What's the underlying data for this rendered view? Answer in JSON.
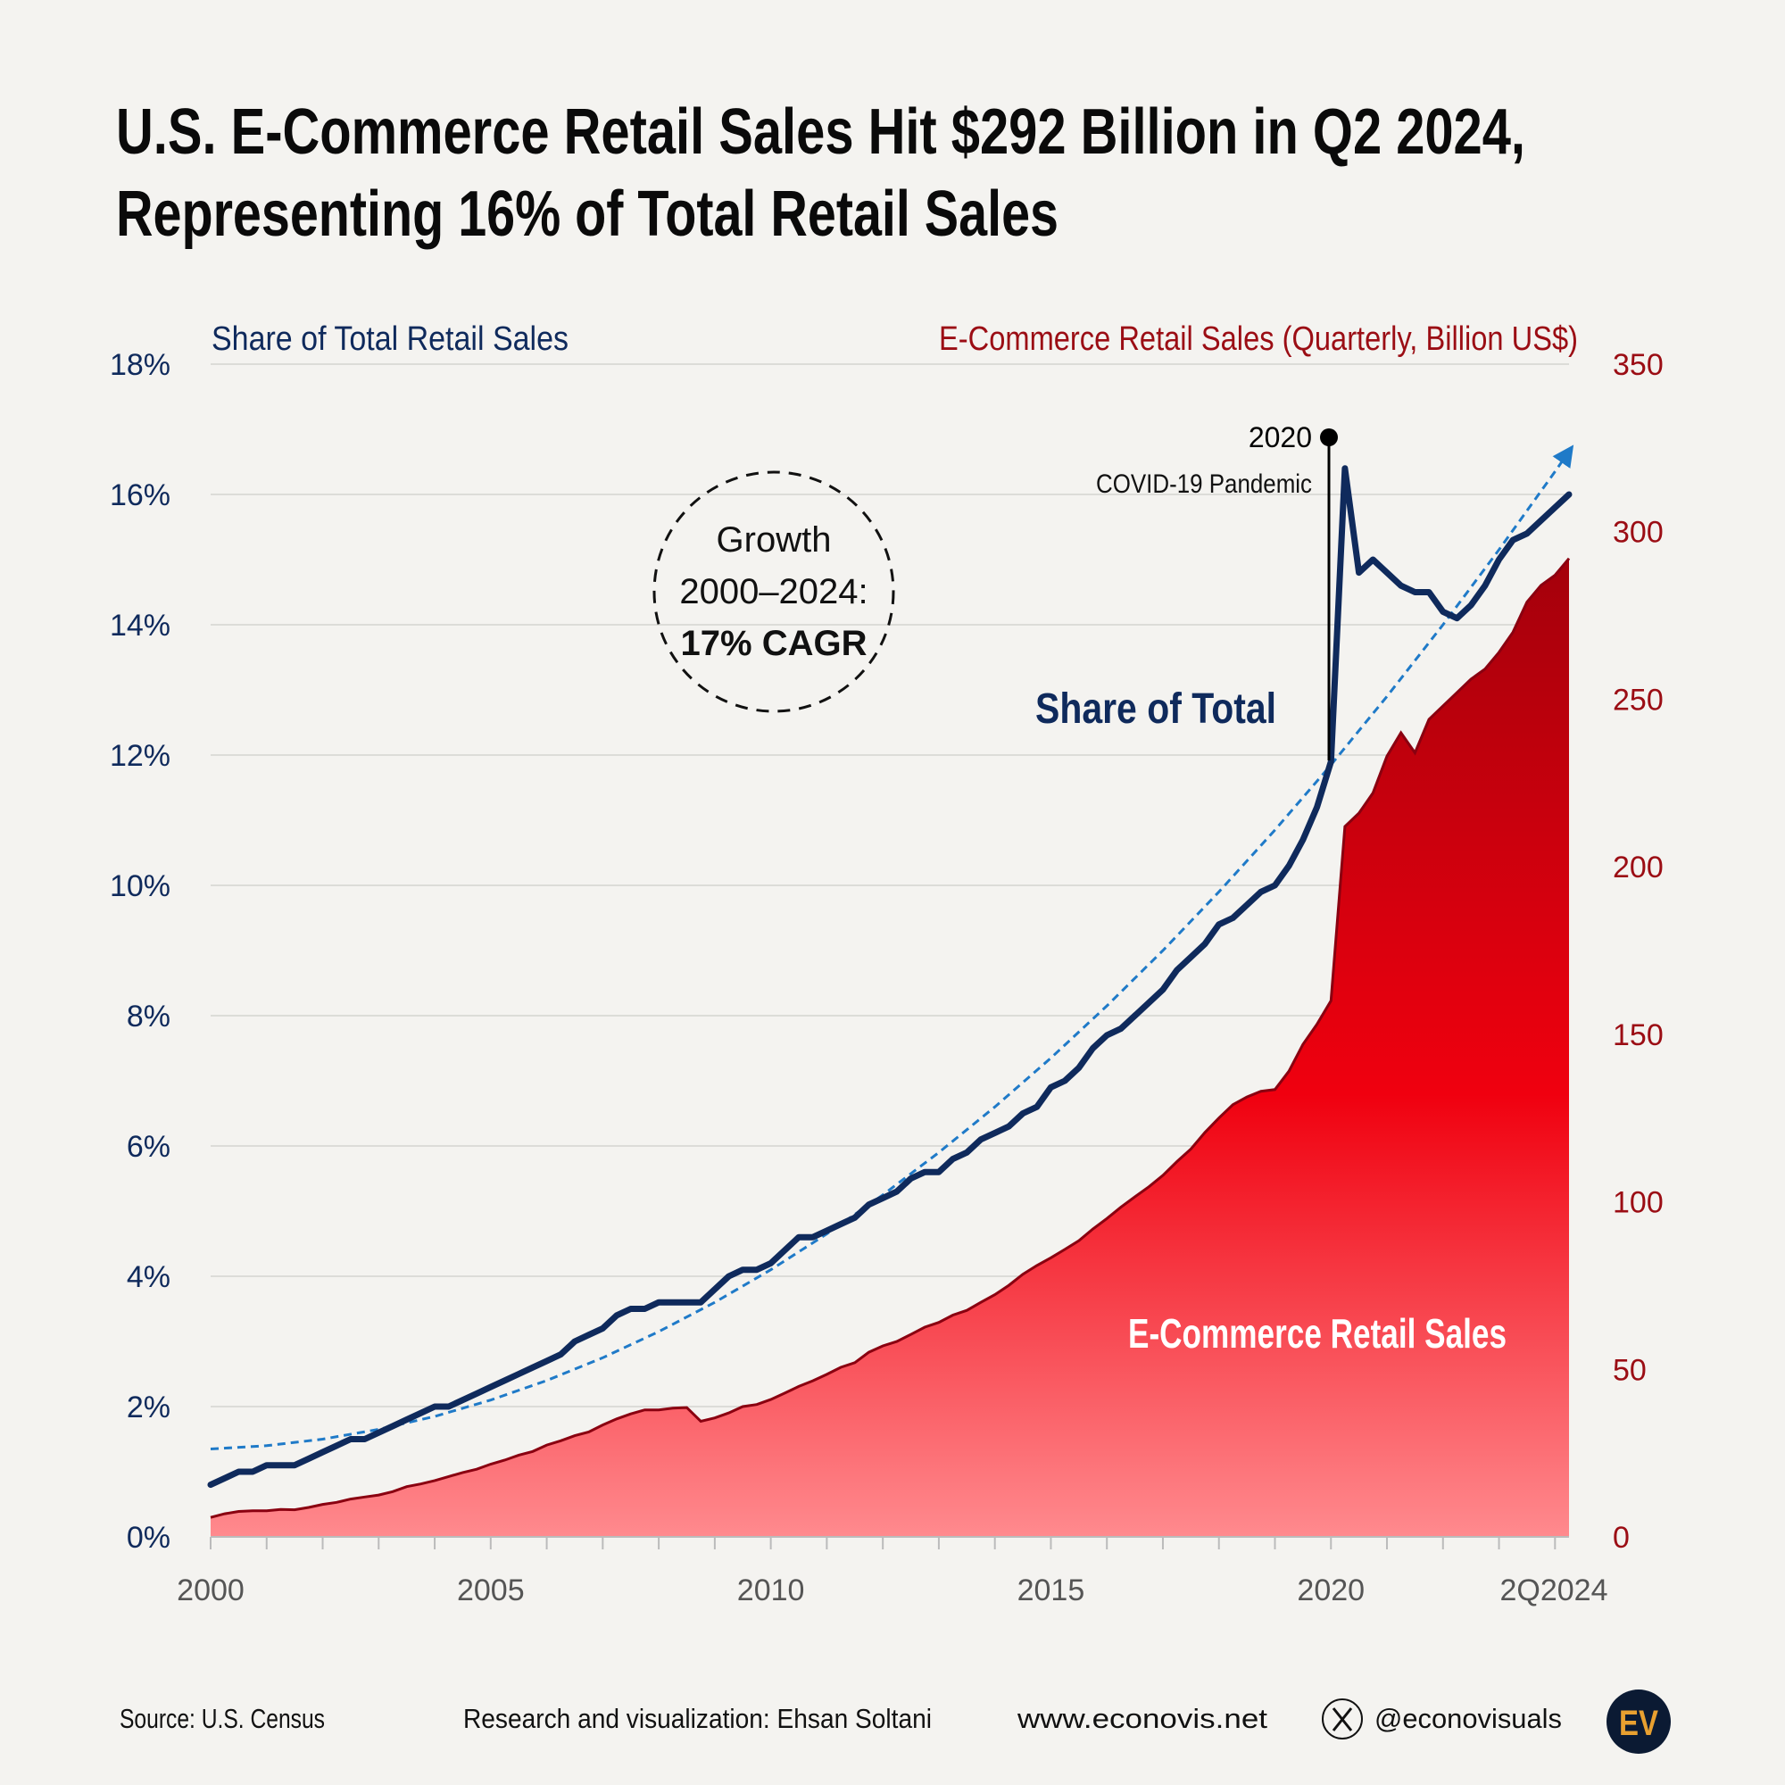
{
  "title": {
    "line1": "U.S. E-Commerce Retail Sales Hit $292 Billion in Q2 2024,",
    "line2": "Representing 16% of Total Retail Sales"
  },
  "colors": {
    "background": "#f4f3f0",
    "share_line": "#0f2a5c",
    "sales_area_top": "#a3000b",
    "sales_area_mid": "#f0000f",
    "sales_area_bottom": "#ff8a8e",
    "sales_outline": "#8a0010",
    "trend": "#1f7ac8"
  },
  "annotations": {
    "covid_year": "2020",
    "covid_label": "COVID-19 Pandemic",
    "growth_line1": "Growth",
    "growth_line2": "2000–2024:",
    "growth_line3": "17% CAGR",
    "share_label": "Share of Total",
    "sales_label": "E-Commerce Retail Sales"
  },
  "footer": {
    "source": "Source: U.S. Census",
    "credit": "Research and visualization: Ehsan Soltani",
    "website": "www.econovis.net",
    "handle": "@econovisuals",
    "social_icon": "x-logo-icon",
    "logo_text": "EV"
  },
  "chart_data": {
    "type": "line+area (dual axis)",
    "title": "U.S. E-Commerce Retail Sales Hit $292 Billion in Q2 2024, Representing 16% of Total Retail Sales",
    "x_range": [
      "2000Q1",
      "2024Q2"
    ],
    "x_tick_labels": [
      "2000",
      "2005",
      "2010",
      "2015",
      "2020",
      "2Q2024"
    ],
    "x_tick_years": [
      2000,
      2005,
      2010,
      2015,
      2020
    ],
    "grid": true,
    "left_axis": {
      "label": "Share of Total Retail Sales",
      "ylim": [
        0,
        18
      ],
      "tick_labels": [
        "0%",
        "2%",
        "4%",
        "6%",
        "8%",
        "10%",
        "12%",
        "14%",
        "16%",
        "18%"
      ]
    },
    "right_axis": {
      "label": "E-Commerce Retail Sales (Quarterly, Billion US$)",
      "ylim": [
        0,
        350
      ],
      "tick_labels": [
        "0",
        "50",
        "100",
        "150",
        "200",
        "250",
        "300",
        "350"
      ]
    },
    "series": [
      {
        "name": "Share of Total",
        "axis": "left",
        "type": "line",
        "values": [
          0.8,
          0.9,
          1.0,
          1.0,
          1.1,
          1.1,
          1.1,
          1.2,
          1.3,
          1.4,
          1.5,
          1.5,
          1.6,
          1.7,
          1.8,
          1.9,
          2.0,
          2.0,
          2.1,
          2.2,
          2.3,
          2.4,
          2.5,
          2.6,
          2.7,
          2.8,
          3.0,
          3.1,
          3.2,
          3.4,
          3.5,
          3.5,
          3.6,
          3.6,
          3.6,
          3.6,
          3.8,
          4.0,
          4.1,
          4.1,
          4.2,
          4.4,
          4.6,
          4.6,
          4.7,
          4.8,
          4.9,
          5.1,
          5.2,
          5.3,
          5.5,
          5.6,
          5.6,
          5.8,
          5.9,
          6.1,
          6.2,
          6.3,
          6.5,
          6.6,
          6.9,
          7.0,
          7.2,
          7.5,
          7.7,
          7.8,
          8.0,
          8.2,
          8.4,
          8.7,
          8.9,
          9.1,
          9.4,
          9.5,
          9.7,
          9.9,
          10.0,
          10.3,
          10.7,
          11.2,
          11.9,
          16.4,
          14.8,
          15.0,
          14.8,
          14.6,
          14.5,
          14.5,
          14.2,
          14.1,
          14.3,
          14.6,
          15.0,
          15.3,
          15.4,
          15.6,
          15.8,
          16.0
        ]
      },
      {
        "name": "E-Commerce Retail Sales",
        "axis": "right",
        "type": "area",
        "values": [
          5.8,
          6.9,
          7.6,
          7.8,
          7.8,
          8.2,
          8.1,
          8.8,
          9.7,
          10.3,
          11.3,
          11.9,
          12.5,
          13.5,
          15.0,
          15.8,
          16.8,
          18.0,
          19.2,
          20.2,
          21.7,
          22.9,
          24.4,
          25.5,
          27.4,
          28.7,
          30.2,
          31.3,
          33.4,
          35.2,
          36.7,
          37.9,
          37.9,
          38.4,
          38.6,
          34.5,
          35.5,
          37.0,
          38.9,
          39.5,
          41.0,
          42.9,
          44.9,
          46.6,
          48.5,
          50.6,
          52.0,
          55.1,
          57.0,
          58.3,
          60.4,
          62.6,
          64.0,
          66.2,
          67.6,
          70.0,
          72.3,
          75.1,
          78.4,
          81.0,
          83.3,
          85.8,
          88.4,
          91.9,
          95.0,
          98.4,
          101.5,
          104.5,
          107.9,
          112.0,
          115.8,
          120.7,
          125.0,
          129.0,
          131.3,
          133.0,
          133.5,
          139.0,
          147.0,
          153.0,
          160.0,
          212.0,
          216.0,
          222.0,
          233.0,
          240.0,
          234.0,
          244.0,
          248.0,
          252.0,
          256.0,
          259.0,
          264.0,
          270.0,
          279.0,
          284.0,
          287.0,
          292.0
        ]
      },
      {
        "axis": "left",
        "type": "trend (dashed, arrow)",
        "years": [
          2000,
          2001,
          2002,
          2003,
          2004,
          2005,
          2006,
          2007,
          2008,
          2009,
          2010,
          2011,
          2012,
          2013,
          2014,
          2015,
          2016,
          2017,
          2018,
          2019,
          2020,
          2021,
          2022,
          2023,
          2024,
          2024.25
        ],
        "values": [
          1.35,
          1.4,
          1.5,
          1.65,
          1.85,
          2.1,
          2.4,
          2.75,
          3.15,
          3.6,
          4.1,
          4.65,
          5.25,
          5.9,
          6.6,
          7.35,
          8.15,
          9.0,
          9.9,
          10.85,
          11.85,
          12.9,
          14.0,
          15.15,
          16.35,
          16.66
        ]
      }
    ],
    "event_marker": {
      "quarter": "2020Q1",
      "label": "2020 COVID-19 Pandemic"
    }
  }
}
